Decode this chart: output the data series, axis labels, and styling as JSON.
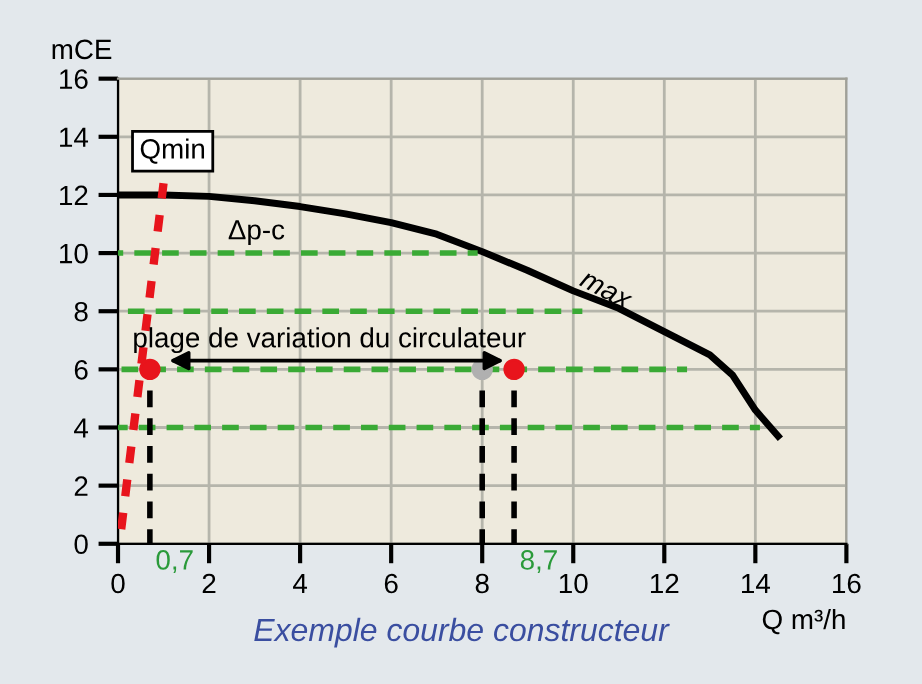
{
  "chart_data": {
    "type": "line",
    "xlabel": "Q m³/h",
    "ylabel": "mCE",
    "xlim": [
      0,
      16
    ],
    "ylim": [
      0,
      16
    ],
    "xticks": [
      0,
      2,
      4,
      6,
      8,
      10,
      12,
      14,
      16
    ],
    "yticks": [
      0,
      2,
      4,
      6,
      8,
      10,
      12,
      14,
      16
    ],
    "grid": true,
    "series": [
      {
        "color": "#000000",
        "line_style": "solid",
        "x": [
          0,
          1,
          2,
          3,
          4,
          5,
          6,
          7,
          8,
          9,
          10,
          11,
          12,
          13,
          13.5,
          14,
          14.5
        ],
        "values": [
          12,
          12,
          11.95,
          11.8,
          11.6,
          11.35,
          11.05,
          10.65,
          10.05,
          9.4,
          8.7,
          8.1,
          7.3,
          6.5,
          5.8,
          4.6,
          3.7
        ]
      },
      {
        "type": "line",
        "color": "#3aaa35",
        "line_style": "dashed",
        "x": [
          0,
          7.9
        ],
        "values": [
          10,
          10
        ]
      },
      {
        "type": "line",
        "color": "#3aaa35",
        "line_style": "dashed",
        "x": [
          0,
          10.2
        ],
        "values": [
          8,
          8
        ]
      },
      {
        "type": "line",
        "color": "#3aaa35",
        "line_style": "dashed",
        "x": [
          0,
          12.5
        ],
        "values": [
          6,
          6
        ]
      },
      {
        "type": "line",
        "color": "#3aaa35",
        "line_style": "dashed",
        "x": [
          0,
          14.1
        ],
        "values": [
          4,
          4
        ]
      },
      {
        "type": "line",
        "color": "#e8141c",
        "line_style": "dotted",
        "x": [
          0.07,
          1.0
        ],
        "values": [
          0.5,
          12.4
        ]
      },
      {
        "type": "line",
        "color": "#000000",
        "line_style": "dashed",
        "x": [
          0.7,
          0.7
        ],
        "values": [
          0,
          6
        ]
      },
      {
        "type": "line",
        "color": "#000000",
        "line_style": "dashed",
        "x": [
          8,
          8
        ],
        "values": [
          0,
          6
        ]
      },
      {
        "type": "line",
        "color": "#000000",
        "line_style": "dashed",
        "x": [
          8.7,
          8.7
        ],
        "values": [
          0,
          6
        ]
      },
      {
        "type": "scatter",
        "color": "#b0b0b0",
        "marker": "circle",
        "x": [
          8
        ],
        "values": [
          6
        ]
      },
      {
        "type": "scatter",
        "color": "#e8141c",
        "marker": "circle",
        "x": [
          0.7,
          8.7
        ],
        "values": [
          6,
          6
        ]
      }
    ],
    "annotations": [
      {
        "text": "Qmin",
        "x": 1.2,
        "y": 13.5
      },
      "Δp-c",
      {
        "text": "max",
        "x": 10.7,
        "y": 8.7
      },
      "plage de variation du circulateur",
      {
        "text": "0,7",
        "x": 0.7,
        "y": 0
      },
      {
        "text": "8,7",
        "x": 8.7,
        "y": 0
      },
      "Exemple courbe constructeur"
    ]
  }
}
